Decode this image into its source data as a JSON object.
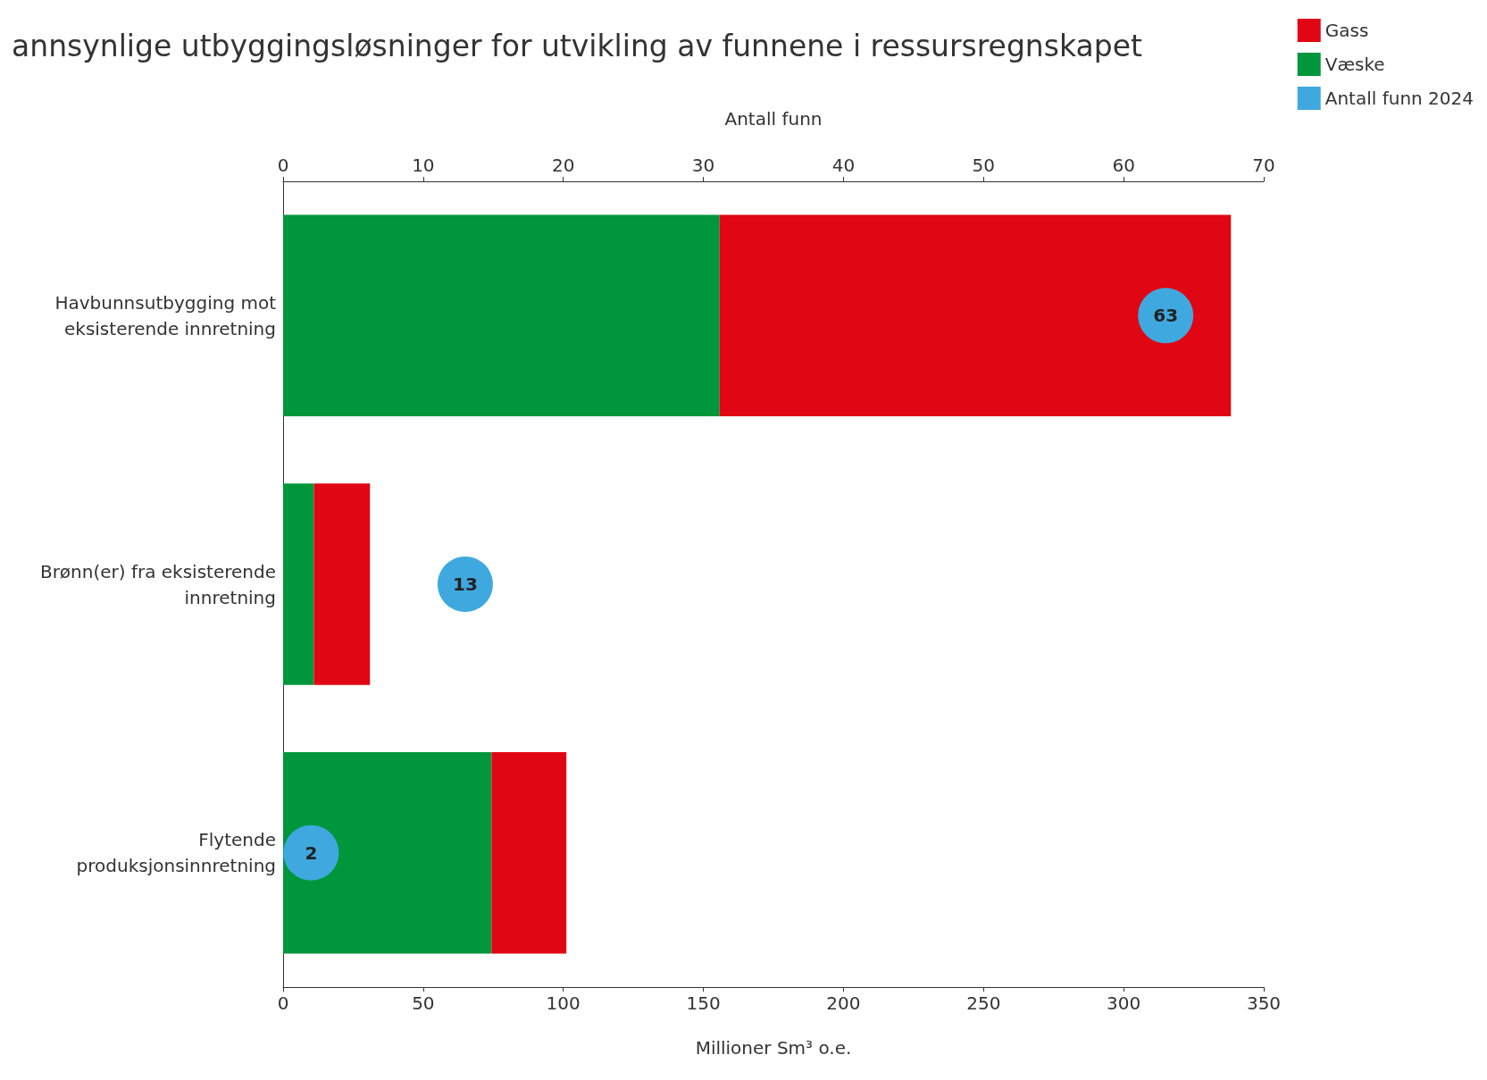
{
  "chart_data": {
    "type": "bar",
    "title": "annsynlige utbyggingsløsninger for utvikling av funnene i ressursregnskapet",
    "orientation": "horizontal",
    "stacked": true,
    "categories": [
      "Havbunnsutbygging mot\neksisterende innretning",
      "Brønn(er) fra eksisterende\ninnretning",
      "Flytende\nproduksjonsinnretning"
    ],
    "series": [
      {
        "name": "Væske",
        "color": "#00963c",
        "values": [
          155.8,
          11,
          74.4
        ]
      },
      {
        "name": "Gass",
        "color": "#e10613",
        "values": [
          182.5,
          20,
          26.7
        ]
      },
      {
        "name": "Antall funn 2024",
        "type": "scatter",
        "axis": "x2",
        "color": "#3fa9df",
        "x": [
          "Havbunnsutbygging mot\neksisterende innretning",
          "Brønn(er) fra eksisterende\ninnretning",
          "Flytende\nproduksjonsinnretning"
        ],
        "values": [
          63,
          13,
          2
        ],
        "value_labels": [
          "63",
          "13",
          "2"
        ]
      }
    ],
    "xlabel": "Millioner Sm³ o.e.",
    "x2label": "Antall funn",
    "xlim": [
      0,
      350
    ],
    "xticks": [
      0,
      50,
      100,
      150,
      200,
      250,
      300,
      350
    ],
    "x2lim": [
      0,
      70
    ],
    "x2ticks": [
      0,
      10,
      20,
      30,
      40,
      50,
      60,
      70
    ],
    "grid": false,
    "legend": "top right"
  }
}
